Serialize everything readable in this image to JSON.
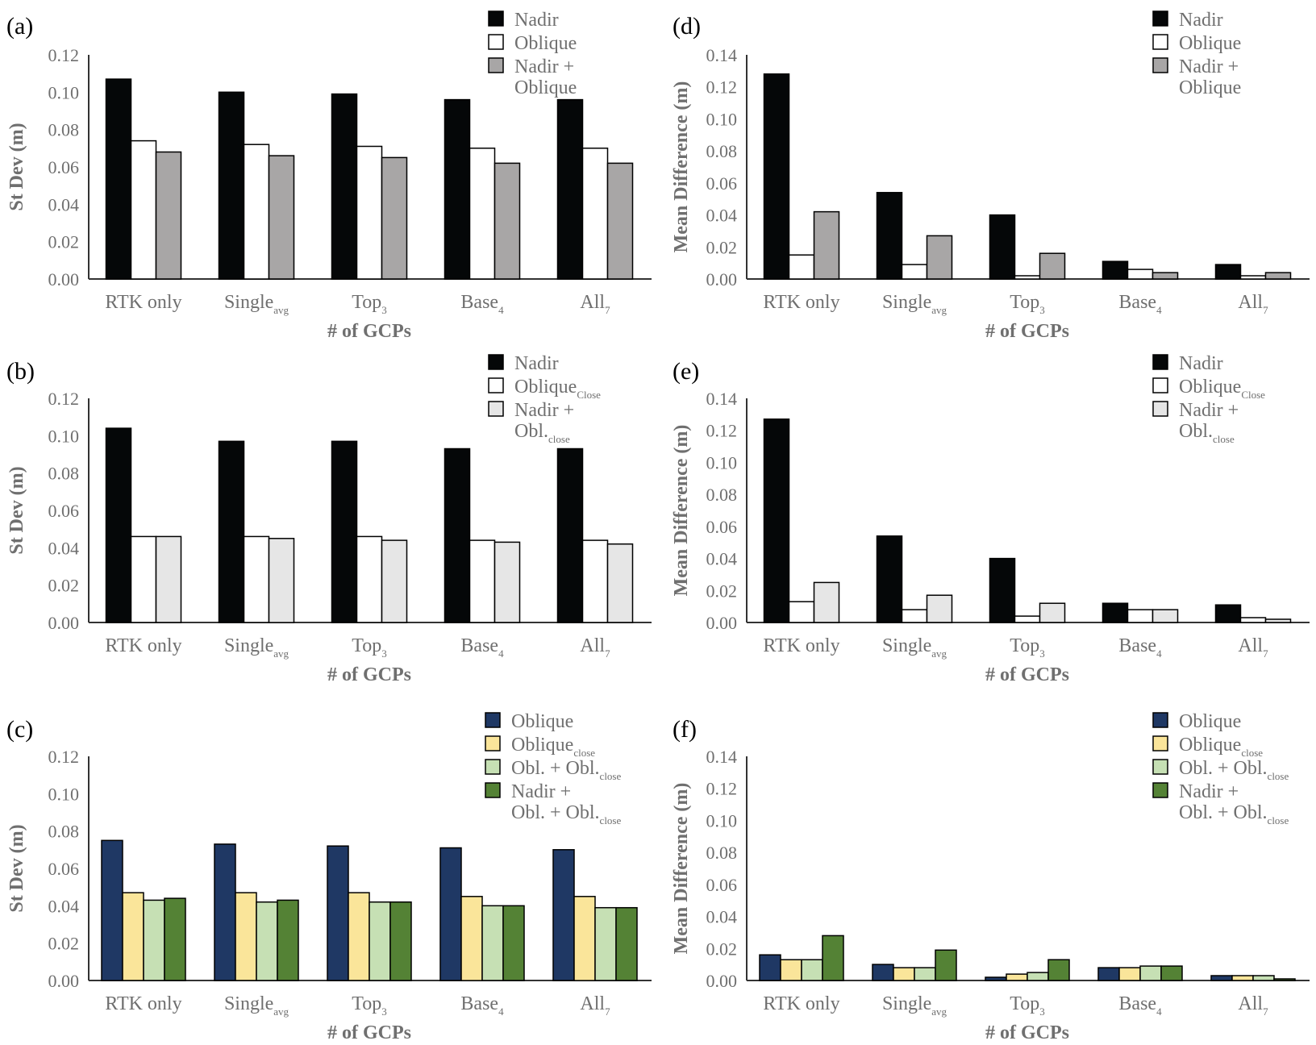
{
  "categories": [
    "RTK only",
    "Single",
    "Top",
    "Base",
    "All"
  ],
  "category_subscripts": [
    "",
    "avg",
    "3",
    "4",
    "7"
  ],
  "colors": {
    "nadir": "#050708",
    "oblique": "#ffffff",
    "nadir_oblique_gray": "#a8a6a6",
    "nadir_obl_close_lightgray": "#e6e6e6",
    "navy": "#1f3864",
    "yellow": "#fae59a",
    "light_green": "#c6e0b4",
    "green": "#548235",
    "axis_text": "#6f6f6f"
  },
  "chart_data": [
    {
      "panel": "(a)",
      "type": "bar",
      "xlabel": "# of GCPs",
      "ylabel": "St Dev (m)",
      "ylim": [
        0,
        0.12
      ],
      "yticks": [
        "0.00",
        "0.02",
        "0.04",
        "0.06",
        "0.08",
        "0.10",
        "0.12"
      ],
      "legend_position": "top-right",
      "series": [
        {
          "name": "Nadir",
          "legend": [
            "Nadir"
          ],
          "color": "#050708",
          "values": [
            0.107,
            0.1,
            0.099,
            0.096,
            0.096
          ]
        },
        {
          "name": "Oblique",
          "legend": [
            "Oblique"
          ],
          "color": "#ffffff",
          "values": [
            0.074,
            0.072,
            0.071,
            0.07,
            0.07
          ]
        },
        {
          "name": "Nadir + Oblique",
          "legend": [
            "Nadir +",
            "Oblique"
          ],
          "color": "#a8a6a6",
          "values": [
            0.068,
            0.066,
            0.065,
            0.062,
            0.062
          ]
        }
      ]
    },
    {
      "panel": "(b)",
      "type": "bar",
      "xlabel": "# of GCPs",
      "ylabel": "St Dev (m)",
      "ylim": [
        0,
        0.12
      ],
      "yticks": [
        "0.00",
        "0.02",
        "0.04",
        "0.06",
        "0.08",
        "0.10",
        "0.12"
      ],
      "legend_position": "top-right",
      "series": [
        {
          "name": "Nadir",
          "legend": [
            "Nadir"
          ],
          "color": "#050708",
          "values": [
            0.104,
            0.097,
            0.097,
            0.093,
            0.093
          ]
        },
        {
          "name": "Oblique Close",
          "legend": [
            "Oblique|Close"
          ],
          "color": "#ffffff",
          "values": [
            0.046,
            0.046,
            0.046,
            0.044,
            0.044
          ]
        },
        {
          "name": "Nadir + Obl. close",
          "legend": [
            "Nadir +",
            "Obl.|close"
          ],
          "color": "#e6e6e6",
          "values": [
            0.046,
            0.045,
            0.044,
            0.043,
            0.042
          ]
        }
      ]
    },
    {
      "panel": "(c)",
      "type": "bar",
      "xlabel": "# of GCPs",
      "ylabel": "St Dev (m)",
      "ylim": [
        0,
        0.12
      ],
      "yticks": [
        "0.00",
        "0.02",
        "0.04",
        "0.06",
        "0.08",
        "0.10",
        "0.12"
      ],
      "legend_position": "top-right",
      "series": [
        {
          "name": "Oblique",
          "legend": [
            "Oblique"
          ],
          "color": "#1f3864",
          "values": [
            0.075,
            0.073,
            0.072,
            0.071,
            0.07
          ]
        },
        {
          "name": "Oblique close",
          "legend": [
            "Oblique|close"
          ],
          "color": "#fae59a",
          "values": [
            0.047,
            0.047,
            0.047,
            0.045,
            0.045
          ]
        },
        {
          "name": "Obl. + Obl. close",
          "legend": [
            "Obl. + Obl.|close"
          ],
          "color": "#c6e0b4",
          "values": [
            0.043,
            0.042,
            0.042,
            0.04,
            0.039
          ]
        },
        {
          "name": "Nadir + Obl. + Obl. close",
          "legend": [
            "Nadir +",
            "Obl. + Obl.|close"
          ],
          "color": "#548235",
          "values": [
            0.044,
            0.043,
            0.042,
            0.04,
            0.039
          ]
        }
      ]
    },
    {
      "panel": "(d)",
      "type": "bar",
      "xlabel": "# of GCPs",
      "ylabel": "Mean Difference (m)",
      "ylim": [
        0,
        0.14
      ],
      "yticks": [
        "0.00",
        "0.02",
        "0.04",
        "0.06",
        "0.08",
        "0.10",
        "0.12",
        "0.14"
      ],
      "legend_position": "top-right",
      "series": [
        {
          "name": "Nadir",
          "legend": [
            "Nadir"
          ],
          "color": "#050708",
          "values": [
            0.128,
            0.054,
            0.04,
            0.011,
            0.009
          ]
        },
        {
          "name": "Oblique",
          "legend": [
            "Oblique"
          ],
          "color": "#ffffff",
          "values": [
            0.015,
            0.009,
            0.002,
            0.006,
            0.002
          ]
        },
        {
          "name": "Nadir + Oblique",
          "legend": [
            "Nadir +",
            "Oblique"
          ],
          "color": "#a8a6a6",
          "values": [
            0.042,
            0.027,
            0.016,
            0.004,
            0.004
          ]
        }
      ]
    },
    {
      "panel": "(e)",
      "type": "bar",
      "xlabel": "# of GCPs",
      "ylabel": "Mean Difference (m)",
      "ylim": [
        0,
        0.14
      ],
      "yticks": [
        "0.00",
        "0.02",
        "0.04",
        "0.06",
        "0.08",
        "0.10",
        "0.12",
        "0.14"
      ],
      "legend_position": "top-right",
      "series": [
        {
          "name": "Nadir",
          "legend": [
            "Nadir"
          ],
          "color": "#050708",
          "values": [
            0.127,
            0.054,
            0.04,
            0.012,
            0.011
          ]
        },
        {
          "name": "Oblique Close",
          "legend": [
            "Oblique|Close"
          ],
          "color": "#ffffff",
          "values": [
            0.013,
            0.008,
            0.004,
            0.008,
            0.003
          ]
        },
        {
          "name": "Nadir + Obl. close",
          "legend": [
            "Nadir +",
            "Obl.|close"
          ],
          "color": "#e6e6e6",
          "values": [
            0.025,
            0.017,
            0.012,
            0.008,
            0.002
          ]
        }
      ]
    },
    {
      "panel": "(f)",
      "type": "bar",
      "xlabel": "# of GCPs",
      "ylabel": "Mean Difference (m)",
      "ylim": [
        0,
        0.14
      ],
      "yticks": [
        "0.00",
        "0.02",
        "0.04",
        "0.06",
        "0.08",
        "0.10",
        "0.12",
        "0.14"
      ],
      "legend_position": "top-right",
      "series": [
        {
          "name": "Oblique",
          "legend": [
            "Oblique"
          ],
          "color": "#1f3864",
          "values": [
            0.016,
            0.01,
            0.002,
            0.008,
            0.003
          ]
        },
        {
          "name": "Oblique close",
          "legend": [
            "Oblique|close"
          ],
          "color": "#fae59a",
          "values": [
            0.013,
            0.008,
            0.004,
            0.008,
            0.003
          ]
        },
        {
          "name": "Obl. + Obl. close",
          "legend": [
            "Obl. + Obl.|close"
          ],
          "color": "#c6e0b4",
          "values": [
            0.013,
            0.008,
            0.005,
            0.009,
            0.003
          ]
        },
        {
          "name": "Nadir + Obl. + Obl. close",
          "legend": [
            "Nadir +",
            "Obl. + Obl.|close"
          ],
          "color": "#548235",
          "values": [
            0.028,
            0.019,
            0.013,
            0.009,
            0.001
          ]
        }
      ]
    }
  ]
}
